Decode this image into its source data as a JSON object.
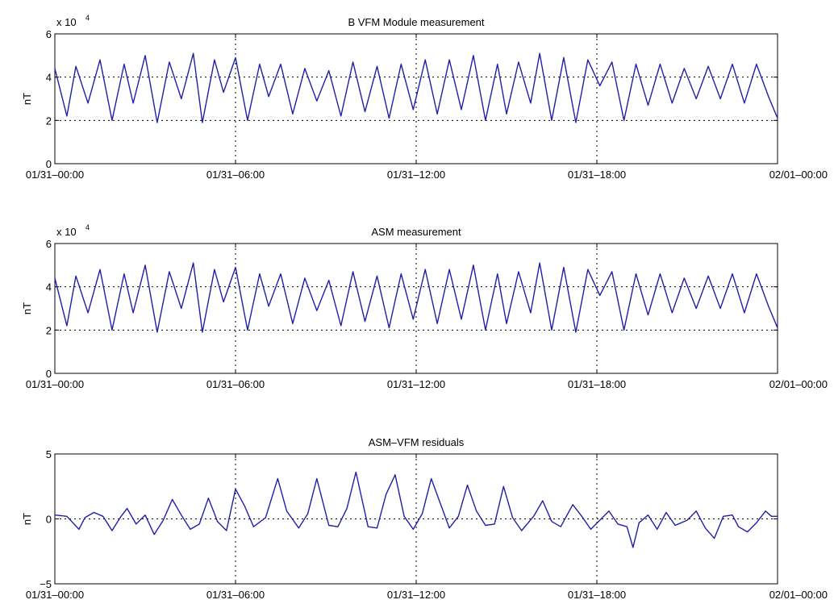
{
  "chart_data": [
    {
      "type": "line",
      "title": "B VFM Module measurement",
      "ylabel": "nT",
      "exponent_label": "x 10",
      "exponent_power": "4",
      "ylim": [
        0,
        6
      ],
      "yticks": [
        0,
        2,
        4,
        6
      ],
      "ytick_labels": [
        "0",
        "2",
        "4",
        "6"
      ],
      "xlim": [
        0,
        24
      ],
      "xticks": [
        0,
        6,
        12,
        18,
        24
      ],
      "xtick_labels": [
        "01/31–00:00",
        "01/31–06:00",
        "01/31–12:00",
        "01/31–18:00",
        "02/01–00:00"
      ],
      "xgrid": [
        6,
        12,
        18
      ],
      "ygrid": [
        2,
        4
      ],
      "color": "#1f1fa8",
      "series": [
        {
          "x": [
            0,
            0.4,
            0.7,
            1.1,
            1.5,
            1.9,
            2.3,
            2.6,
            3.0,
            3.4,
            3.8,
            4.2,
            4.6,
            4.9,
            5.3,
            5.6,
            6.0,
            6.4,
            6.8,
            7.1,
            7.5,
            7.9,
            8.3,
            8.7,
            9.1,
            9.5,
            9.9,
            10.3,
            10.7,
            11.1,
            11.5,
            11.9,
            12.3,
            12.7,
            13.1,
            13.5,
            13.9,
            14.3,
            14.7,
            15.0,
            15.4,
            15.8,
            16.1,
            16.5,
            16.9,
            17.3,
            17.7,
            18.1,
            18.5,
            18.9,
            19.3,
            19.7,
            20.1,
            20.5,
            20.9,
            21.3,
            21.7,
            22.1,
            22.5,
            22.9,
            23.3,
            23.7,
            24.0
          ],
          "y": [
            4.4,
            2.2,
            4.5,
            2.8,
            4.8,
            2.0,
            4.6,
            2.8,
            5.0,
            1.9,
            4.7,
            3.0,
            5.1,
            1.9,
            4.8,
            3.3,
            4.9,
            2.0,
            4.6,
            3.1,
            4.6,
            2.3,
            4.4,
            2.9,
            4.3,
            2.2,
            4.7,
            2.4,
            4.5,
            2.1,
            4.6,
            2.5,
            4.8,
            2.3,
            4.8,
            2.5,
            5.0,
            2.0,
            4.6,
            2.3,
            4.7,
            2.8,
            5.1,
            2.0,
            4.9,
            1.9,
            4.8,
            3.6,
            4.7,
            2.0,
            4.6,
            2.7,
            4.6,
            2.8,
            4.4,
            3.0,
            4.5,
            3.0,
            4.6,
            2.8,
            4.6,
            3.1,
            2.1
          ]
        }
      ]
    },
    {
      "type": "line",
      "title": "ASM measurement",
      "ylabel": "nT",
      "exponent_label": "x 10",
      "exponent_power": "4",
      "ylim": [
        0,
        6
      ],
      "yticks": [
        0,
        2,
        4,
        6
      ],
      "ytick_labels": [
        "0",
        "2",
        "4",
        "6"
      ],
      "xlim": [
        0,
        24
      ],
      "xticks": [
        0,
        6,
        12,
        18,
        24
      ],
      "xtick_labels": [
        "01/31–00:00",
        "01/31–06:00",
        "01/31–12:00",
        "01/31–18:00",
        "02/01–00:00"
      ],
      "xgrid": [
        6,
        12,
        18
      ],
      "ygrid": [
        2,
        4
      ],
      "color": "#1f1fa8",
      "series": [
        {
          "x": [
            0,
            0.4,
            0.7,
            1.1,
            1.5,
            1.9,
            2.3,
            2.6,
            3.0,
            3.4,
            3.8,
            4.2,
            4.6,
            4.9,
            5.3,
            5.6,
            6.0,
            6.4,
            6.8,
            7.1,
            7.5,
            7.9,
            8.3,
            8.7,
            9.1,
            9.5,
            9.9,
            10.3,
            10.7,
            11.1,
            11.5,
            11.9,
            12.3,
            12.7,
            13.1,
            13.5,
            13.9,
            14.3,
            14.7,
            15.0,
            15.4,
            15.8,
            16.1,
            16.5,
            16.9,
            17.3,
            17.7,
            18.1,
            18.5,
            18.9,
            19.3,
            19.7,
            20.1,
            20.5,
            20.9,
            21.3,
            21.7,
            22.1,
            22.5,
            22.9,
            23.3,
            23.7,
            24.0
          ],
          "y": [
            4.4,
            2.2,
            4.5,
            2.8,
            4.8,
            2.0,
            4.6,
            2.8,
            5.0,
            1.9,
            4.7,
            3.0,
            5.1,
            1.9,
            4.8,
            3.3,
            4.9,
            2.0,
            4.6,
            3.1,
            4.6,
            2.3,
            4.4,
            2.9,
            4.3,
            2.2,
            4.7,
            2.4,
            4.5,
            2.1,
            4.6,
            2.5,
            4.8,
            2.3,
            4.8,
            2.5,
            5.0,
            2.0,
            4.6,
            2.3,
            4.7,
            2.8,
            5.1,
            2.0,
            4.9,
            1.9,
            4.8,
            3.6,
            4.7,
            2.0,
            4.6,
            2.7,
            4.6,
            2.8,
            4.4,
            3.0,
            4.5,
            3.0,
            4.6,
            2.8,
            4.6,
            3.1,
            2.1
          ]
        }
      ]
    },
    {
      "type": "line",
      "title": "ASM–VFM residuals",
      "ylabel": "nT",
      "ylim": [
        -5,
        5
      ],
      "yticks": [
        -5,
        0,
        5
      ],
      "ytick_labels": [
        "−5",
        "0",
        "5"
      ],
      "xlim": [
        0,
        24
      ],
      "xticks": [
        0,
        6,
        12,
        18,
        24
      ],
      "xtick_labels": [
        "01/31–00:00",
        "01/31–06:00",
        "01/31–12:00",
        "01/31–18:00",
        "02/01–00:00"
      ],
      "xgrid": [
        6,
        12,
        18
      ],
      "ygrid": [
        0
      ],
      "color": "#1f1fa8",
      "series": [
        {
          "x": [
            0,
            0.4,
            0.8,
            1.0,
            1.3,
            1.6,
            1.9,
            2.2,
            2.4,
            2.7,
            3.0,
            3.3,
            3.6,
            3.9,
            4.2,
            4.5,
            4.8,
            5.1,
            5.4,
            5.7,
            6.0,
            6.3,
            6.6,
            7.0,
            7.4,
            7.7,
            8.1,
            8.4,
            8.7,
            9.1,
            9.4,
            9.7,
            10.0,
            10.4,
            10.7,
            11.0,
            11.3,
            11.6,
            11.9,
            12.2,
            12.5,
            12.8,
            13.1,
            13.4,
            13.7,
            14.0,
            14.3,
            14.6,
            14.9,
            15.2,
            15.5,
            15.9,
            16.2,
            16.5,
            16.8,
            17.2,
            17.5,
            17.8,
            18.1,
            18.4,
            18.7,
            19.0,
            19.2,
            19.4,
            19.7,
            20.0,
            20.3,
            20.6,
            21.0,
            21.3,
            21.6,
            21.9,
            22.2,
            22.5,
            22.7,
            23.0,
            23.3,
            23.6,
            23.8,
            24.0
          ],
          "y": [
            0.3,
            0.2,
            -0.8,
            0.1,
            0.5,
            0.2,
            -0.9,
            0.2,
            0.8,
            -0.4,
            0.3,
            -1.2,
            -0.1,
            1.5,
            0.3,
            -0.8,
            -0.4,
            1.6,
            -0.2,
            -0.9,
            2.3,
            1.0,
            -0.6,
            0.1,
            3.1,
            0.6,
            -0.7,
            0.4,
            3.1,
            -0.5,
            -0.6,
            0.8,
            3.6,
            -0.6,
            -0.7,
            1.9,
            3.4,
            0.2,
            -0.8,
            0.4,
            3.1,
            1.2,
            -0.7,
            0.2,
            2.6,
            0.6,
            -0.5,
            -0.4,
            2.5,
            0.1,
            -0.9,
            0.2,
            1.4,
            -0.2,
            -0.6,
            1.1,
            0.2,
            -0.8,
            -0.1,
            0.6,
            -0.4,
            -0.6,
            -2.2,
            -0.3,
            0.3,
            -0.8,
            0.5,
            -0.5,
            -0.1,
            0.6,
            -0.7,
            -1.5,
            0.2,
            0.3,
            -0.6,
            -1.0,
            -0.3,
            0.6,
            0.2,
            0.2
          ]
        }
      ]
    }
  ]
}
